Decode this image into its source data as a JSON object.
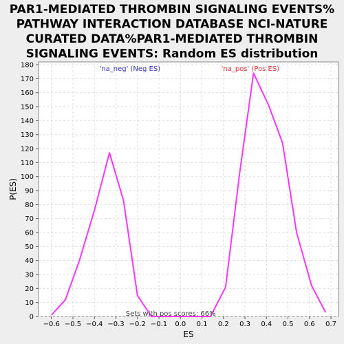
{
  "chart_data": {
    "type": "line",
    "title_lines": [
      "PAR1-MEDIATED THROMBIN SIGNALING EVENTS%",
      "PATHWAY INTERACTION DATABASE NCI-NATURE",
      "CURATED DATA%PAR1-MEDIATED THROMBIN",
      "SIGNALING EVENTS: Random ES distribution"
    ],
    "xlabel": "ES",
    "ylabel": "P(ES)",
    "xlim": [
      -0.66,
      0.735
    ],
    "ylim": [
      0,
      182
    ],
    "x_ticks": [
      -0.6,
      -0.5,
      -0.4,
      -0.3,
      -0.2,
      -0.1,
      0.0,
      0.1,
      0.2,
      0.3,
      0.4,
      0.5,
      0.6,
      0.7
    ],
    "x_tick_labels": [
      "−0.6",
      "−0.5",
      "−0.4",
      "−0.3",
      "−0.2",
      "−0.1",
      "0.0",
      "0.1",
      "0.2",
      "0.3",
      "0.4",
      "0.5",
      "0.6",
      "0.7"
    ],
    "y_ticks": [
      0,
      10,
      20,
      30,
      40,
      50,
      60,
      70,
      80,
      90,
      100,
      110,
      120,
      130,
      140,
      150,
      160,
      170,
      180
    ],
    "grid": true,
    "line_color": "#ff33ff",
    "series": [
      {
        "x": [
          -0.6,
          -0.535,
          -0.47,
          -0.4,
          -0.33,
          -0.265,
          -0.2,
          -0.135,
          -0.07,
          0.0,
          0.07,
          0.14,
          0.21,
          0.275,
          0.34,
          0.41,
          0.475,
          0.54,
          0.61,
          0.675
        ],
        "y": [
          1,
          12,
          40,
          76,
          117,
          83,
          15,
          0,
          0,
          0,
          0,
          0,
          21,
          102,
          174,
          151,
          124,
          60,
          22,
          3
        ]
      }
    ],
    "legend_neg": "'na_neg' (Neg ES)",
    "legend_pos": "'na_pos' (Pos ES)",
    "annotation": "Sets with pos scores: 66%"
  }
}
